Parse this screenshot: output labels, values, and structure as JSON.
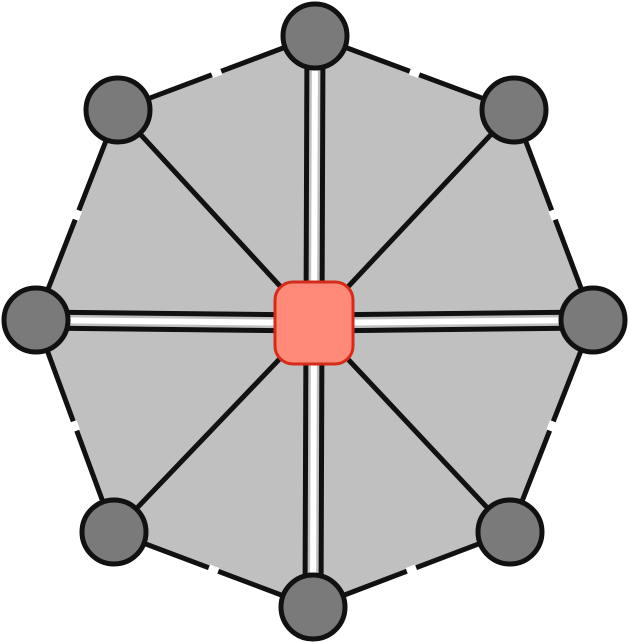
{
  "diagram": {
    "shape": "octagon-hub-and-spoke",
    "colors": {
      "fill": "#c0c0c0",
      "stroke": "#111111",
      "outer_node": "#7a7a7a",
      "hub": "#ff8a7a",
      "hub_stroke": "#d62a1a",
      "tick": "#ffffff"
    },
    "outer_nodes": [
      {
        "id": "top"
      },
      {
        "id": "top-right"
      },
      {
        "id": "right"
      },
      {
        "id": "bottom-right"
      },
      {
        "id": "bottom"
      },
      {
        "id": "bottom-left"
      },
      {
        "id": "left"
      },
      {
        "id": "top-left"
      }
    ],
    "hub": {
      "id": "center"
    },
    "double_connectors": [
      "top",
      "right",
      "bottom",
      "left"
    ],
    "single_connectors": [
      "top-right",
      "bottom-right",
      "bottom-left",
      "top-left"
    ]
  }
}
